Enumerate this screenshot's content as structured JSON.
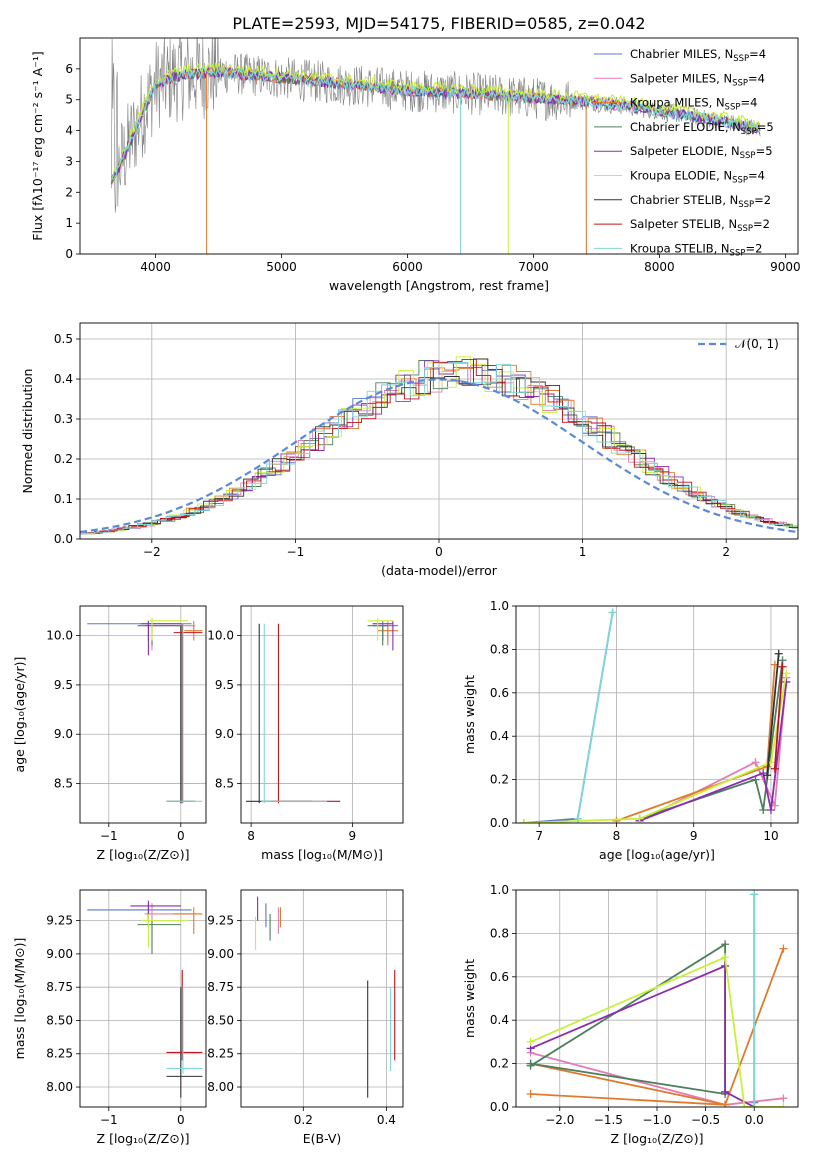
{
  "figure_title": "PLATE=2593, MJD=54175, FIBERID=0585, z=0.042",
  "models": [
    {
      "label": "Chabrier MILES, N",
      "sub": "SSP",
      "suffix": "=4",
      "color": "#5a78c8"
    },
    {
      "label": "Salpeter MILES, N",
      "sub": "SSP",
      "suffix": "=4",
      "color": "#e37db4"
    },
    {
      "label": "Kroupa MILES, N",
      "sub": "SSP",
      "suffix": "=4",
      "color": "#e07a2e"
    },
    {
      "label": "Chabrier ELODIE, N",
      "sub": "SSP",
      "suffix": "=5",
      "color": "#4e7f5e"
    },
    {
      "label": "Salpeter ELODIE, N",
      "sub": "SSP",
      "suffix": "=5",
      "color": "#8c2bb0"
    },
    {
      "label": "Kroupa ELODIE, N",
      "sub": "SSP",
      "suffix": "=4",
      "color": "#c8ef3a"
    },
    {
      "label": "Chabrier STELIB, N",
      "sub": "SSP",
      "suffix": "=2",
      "color": "#333333"
    },
    {
      "label": "Salpeter STELIB, N",
      "sub": "SSP",
      "suffix": "=2",
      "color": "#c0141c"
    },
    {
      "label": "Kroupa STELIB, N",
      "sub": "SSP",
      "suffix": "=2",
      "color": "#7ed7d9"
    }
  ],
  "chart_data": [
    {
      "id": "spectrum",
      "type": "line",
      "xlabel": "wavelength [Angstrom, rest frame]",
      "ylabel": "Flux [fλ10⁻¹⁷ erg cm⁻² s⁻¹ A⁻¹]",
      "xlim": [
        3400,
        9100
      ],
      "ylim": [
        0,
        7
      ],
      "xticks": [
        4000,
        5000,
        6000,
        7000,
        8000,
        9000
      ],
      "yticks": [
        0,
        1,
        2,
        3,
        4,
        5,
        6
      ],
      "continuum": {
        "x": [
          3650,
          3700,
          3900,
          4000,
          4200,
          4500,
          5000,
          5500,
          6000,
          6500,
          7000,
          7400,
          7800,
          8200,
          8500,
          8800
        ],
        "y": [
          2.4,
          2.7,
          4.6,
          5.5,
          5.8,
          5.9,
          5.7,
          5.5,
          5.3,
          5.2,
          5.05,
          4.95,
          4.75,
          4.5,
          4.3,
          4.05
        ]
      },
      "data_color": "#808080",
      "grid": false
    },
    {
      "id": "residuals",
      "type": "step",
      "xlabel": "(data-model)/error",
      "ylabel": "Normed distribution",
      "xlim": [
        -2.5,
        2.5
      ],
      "ylim": [
        0,
        0.54
      ],
      "xticks": [
        -2,
        -1,
        0,
        1,
        2
      ],
      "yticks": [
        0.0,
        0.1,
        0.2,
        0.3,
        0.4,
        0.5
      ],
      "ytick_labels": [
        "0.0",
        "0.1",
        "0.2",
        "0.3",
        "0.4",
        "0.5"
      ],
      "normal_label": "𝒩(0, 1)",
      "normal_color": "#5b8ad8",
      "grid": true
    },
    {
      "id": "z-age",
      "type": "errorbar",
      "xlabel": "Z [log₁₀(Z/Z⊙)]",
      "ylabel": "age  [log₁₀(age/yr)]",
      "xlim": [
        -1.4,
        0.35
      ],
      "ylim": [
        8.1,
        10.3
      ],
      "xticks": [
        -1,
        0
      ],
      "yticks": [
        8.5,
        9.0,
        9.5,
        10.0
      ],
      "ytick_labels": [
        "8.5",
        "9.0",
        "9.5",
        "10.0"
      ],
      "grid": true
    },
    {
      "id": "mass-age",
      "type": "errorbar",
      "xlabel": "mass [log₁₀(M/M⊙)]",
      "ylabel": "",
      "xlim": [
        7.9,
        9.5
      ],
      "ylim": [
        8.1,
        10.3
      ],
      "xticks": [
        8,
        9
      ],
      "yticks": [
        8.5,
        9.0,
        9.5,
        10.0
      ],
      "ytick_labels": [
        "8.5",
        "9.0",
        "9.5",
        "10.0"
      ],
      "grid": true
    },
    {
      "id": "age-weight",
      "type": "line",
      "xlabel": "age  [log₁₀(age/yr)]",
      "ylabel": "mass weight",
      "xlim": [
        6.7,
        10.35
      ],
      "ylim": [
        0,
        1.0
      ],
      "xticks": [
        7,
        8,
        9,
        10
      ],
      "yticks": [
        0.0,
        0.2,
        0.4,
        0.6,
        0.8,
        1.0
      ],
      "ytick_labels": [
        "0.0",
        "0.2",
        "0.4",
        "0.6",
        "0.8",
        "1.0"
      ],
      "series": [
        {
          "model": 0,
          "x": [
            6.8,
            7.5,
            7.95
          ],
          "y": [
            0.0,
            0.02,
            0.97
          ]
        },
        {
          "model": 1,
          "x": [
            8.3,
            9.8,
            10.05,
            10.2
          ],
          "y": [
            0.01,
            0.28,
            0.08,
            0.67
          ]
        },
        {
          "model": 2,
          "x": [
            8.0,
            9.95,
            10.05
          ],
          "y": [
            0.01,
            0.26,
            0.73
          ]
        },
        {
          "model": 3,
          "x": [
            8.3,
            9.8,
            9.9,
            10.15
          ],
          "y": [
            0.02,
            0.2,
            0.06,
            0.75
          ]
        },
        {
          "model": 4,
          "x": [
            8.3,
            9.9,
            10.0,
            10.2
          ],
          "y": [
            0.01,
            0.23,
            0.06,
            0.65
          ]
        },
        {
          "model": 5,
          "x": [
            6.8,
            8.3,
            10.0,
            10.2
          ],
          "y": [
            0.0,
            0.02,
            0.28,
            0.69
          ]
        },
        {
          "model": 6,
          "x": [
            9.95,
            10.1
          ],
          "y": [
            0.22,
            0.78
          ]
        },
        {
          "model": 7,
          "x": [
            10.05,
            10.15
          ],
          "y": [
            0.25,
            0.72
          ]
        },
        {
          "model": 8,
          "x": [
            7.5,
            7.95
          ],
          "y": [
            0.02,
            0.97
          ]
        }
      ],
      "grid": true
    },
    {
      "id": "z-mass",
      "type": "errorbar",
      "xlabel": "Z [log₁₀(Z/Z⊙)]",
      "ylabel": "mass [log₁₀(M/M⊙)]",
      "xlim": [
        -1.4,
        0.35
      ],
      "ylim": [
        7.85,
        9.48
      ],
      "xticks": [
        -1,
        0
      ],
      "yticks": [
        8.0,
        8.25,
        8.5,
        8.75,
        9.0,
        9.25
      ],
      "ytick_labels": [
        "8.00",
        "8.25",
        "8.50",
        "8.75",
        "9.00",
        "9.25"
      ],
      "grid": true
    },
    {
      "id": "ebv-mass",
      "type": "errorbar",
      "xlabel": "E(B-V)",
      "ylabel": "",
      "xlim": [
        0.05,
        0.44
      ],
      "ylim": [
        7.85,
        9.48
      ],
      "xticks": [
        0.2,
        0.4
      ],
      "yticks": [
        8.0,
        8.25,
        8.5,
        8.75,
        9.0,
        9.25
      ],
      "xtick_labels": [
        "0.2",
        "0.4"
      ],
      "ytick_labels": [
        "8.00",
        "8.25",
        "8.50",
        "8.75",
        "9.00",
        "9.25"
      ],
      "grid": true
    },
    {
      "id": "z-weight",
      "type": "line",
      "xlabel": "Z [log₁₀(Z/Z⊙)]",
      "ylabel": "mass weight",
      "xlim": [
        -2.45,
        0.45
      ],
      "ylim": [
        0,
        1.0
      ],
      "xticks": [
        -2.0,
        -1.5,
        -1.0,
        -0.5,
        0.0
      ],
      "xtick_labels": [
        "−2.0",
        "−1.5",
        "−1.0",
        "−0.5",
        "0.0"
      ],
      "yticks": [
        0.0,
        0.2,
        0.4,
        0.6,
        0.8,
        1.0
      ],
      "ytick_labels": [
        "0.0",
        "0.2",
        "0.4",
        "0.6",
        "0.8",
        "1.0"
      ],
      "series": [
        {
          "model": 0,
          "x": [
            0.0,
            0.0,
            -0.0
          ],
          "y": [
            0.0,
            0.98,
            0.02
          ]
        },
        {
          "model": 1,
          "x": [
            -2.3,
            -0.3,
            0.3
          ],
          "y": [
            0.25,
            0.01,
            0.04
          ]
        },
        {
          "model": 2,
          "x": [
            -2.3,
            -0.3,
            0.3
          ],
          "y": [
            0.06,
            0.01,
            0.73
          ]
        },
        {
          "model": 2,
          "x": [
            -2.3,
            -0.3
          ],
          "y": [
            0.2,
            0.01
          ]
        },
        {
          "model": 3,
          "x": [
            -2.3,
            -0.3,
            -0.3,
            -2.3
          ],
          "y": [
            0.19,
            0.75,
            0.06,
            0.2
          ]
        },
        {
          "model": 4,
          "x": [
            -2.3,
            -0.3,
            -0.3,
            0.0
          ],
          "y": [
            0.27,
            0.65,
            0.07,
            0.0
          ]
        },
        {
          "model": 5,
          "x": [
            -2.3,
            -0.3,
            -0.1,
            0.3
          ],
          "y": [
            0.3,
            0.69,
            0.0,
            0.0
          ]
        },
        {
          "model": 8,
          "x": [
            0.0,
            0.0
          ],
          "y": [
            0.0,
            0.98
          ]
        }
      ],
      "grid": true
    }
  ]
}
